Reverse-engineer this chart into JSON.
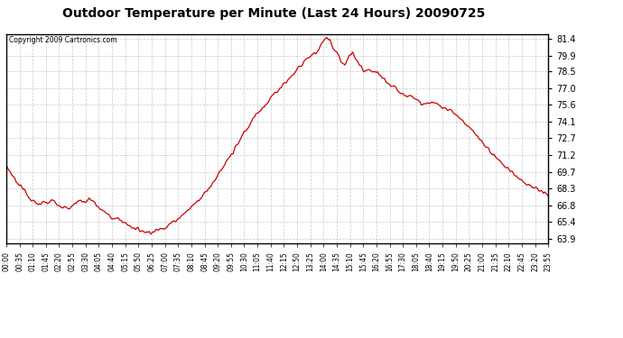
{
  "title": "Outdoor Temperature per Minute (Last 24 Hours) 20090725",
  "copyright_text": "Copyright 2009 Cartronics.com",
  "line_color": "#cc0000",
  "background_color": "#ffffff",
  "plot_background": "#ffffff",
  "grid_color": "#bbbbbb",
  "yticks": [
    63.9,
    65.4,
    66.8,
    68.3,
    69.7,
    71.2,
    72.7,
    74.1,
    75.6,
    77.0,
    78.5,
    79.9,
    81.4
  ],
  "ylim": [
    63.5,
    81.8
  ],
  "xtick_labels": [
    "00:00",
    "00:35",
    "01:10",
    "01:45",
    "02:20",
    "02:55",
    "03:30",
    "04:05",
    "04:40",
    "05:15",
    "05:50",
    "06:25",
    "07:00",
    "07:35",
    "08:10",
    "08:45",
    "09:20",
    "09:55",
    "10:30",
    "11:05",
    "11:40",
    "12:15",
    "12:50",
    "13:25",
    "14:00",
    "14:35",
    "15:10",
    "15:45",
    "16:20",
    "16:55",
    "17:30",
    "18:05",
    "18:40",
    "19:15",
    "19:50",
    "20:25",
    "21:00",
    "21:35",
    "22:10",
    "22:45",
    "23:20",
    "23:55"
  ],
  "keypoints_time": [
    0.0,
    0.25,
    0.5,
    0.75,
    1.0,
    1.25,
    1.5,
    1.67,
    1.83,
    2.0,
    2.25,
    2.5,
    2.75,
    3.0,
    3.25,
    3.5,
    3.67,
    3.83,
    4.0,
    4.25,
    4.5,
    4.75,
    5.0,
    5.25,
    5.5,
    5.75,
    6.0,
    6.25,
    6.5,
    6.75,
    7.0,
    7.25,
    7.5,
    7.75,
    8.0,
    8.25,
    8.5,
    8.75,
    9.0,
    9.25,
    9.5,
    9.75,
    10.0,
    10.25,
    10.5,
    10.75,
    11.0,
    11.25,
    11.5,
    11.75,
    12.0,
    12.17,
    12.33,
    12.5,
    12.67,
    12.83,
    13.0,
    13.17,
    13.33,
    13.5,
    13.67,
    13.83,
    14.0,
    14.17,
    14.33,
    14.5,
    14.67,
    14.83,
    15.0,
    15.17,
    15.33,
    15.5,
    15.67,
    15.83,
    16.0,
    16.25,
    16.5,
    16.75,
    17.0,
    17.25,
    17.5,
    17.75,
    18.0,
    18.25,
    18.5,
    18.75,
    19.0,
    19.25,
    19.5,
    19.75,
    20.0,
    20.5,
    21.0,
    21.5,
    22.0,
    22.5,
    23.0,
    23.5,
    24.0
  ],
  "keypoints_temp": [
    70.3,
    69.5,
    68.8,
    68.3,
    67.5,
    67.1,
    66.8,
    67.2,
    66.9,
    67.3,
    67.0,
    66.7,
    66.5,
    66.9,
    67.3,
    67.1,
    67.4,
    67.2,
    66.8,
    66.4,
    66.0,
    65.7,
    65.6,
    65.3,
    65.0,
    64.8,
    64.6,
    64.5,
    64.5,
    64.7,
    64.9,
    65.2,
    65.5,
    65.9,
    66.3,
    66.8,
    67.3,
    67.8,
    68.4,
    69.1,
    69.8,
    70.6,
    71.4,
    72.2,
    73.0,
    73.8,
    74.5,
    75.1,
    75.7,
    76.2,
    76.8,
    77.2,
    77.6,
    77.9,
    78.3,
    78.6,
    78.9,
    79.2,
    79.5,
    79.8,
    80.2,
    80.6,
    81.0,
    81.4,
    81.1,
    80.6,
    80.0,
    79.4,
    79.0,
    79.8,
    80.1,
    79.5,
    78.9,
    78.4,
    78.6,
    78.5,
    78.2,
    77.8,
    77.3,
    77.0,
    76.7,
    76.3,
    76.5,
    75.8,
    75.6,
    75.8,
    75.7,
    75.5,
    75.3,
    75.0,
    74.6,
    73.6,
    72.5,
    71.4,
    70.4,
    69.5,
    68.8,
    68.2,
    67.7
  ]
}
